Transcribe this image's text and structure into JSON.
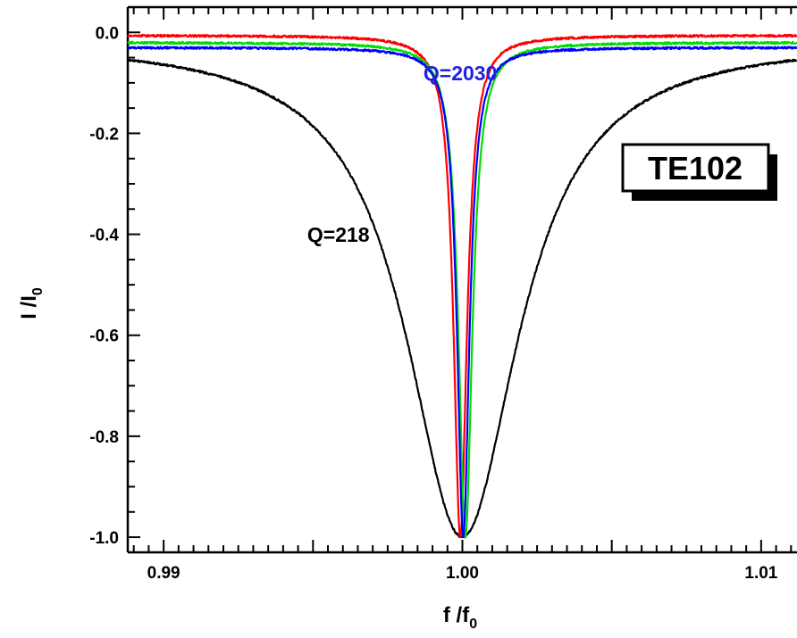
{
  "chart_data": {
    "type": "line",
    "xlabel": {
      "main": "f /f",
      "sub": "0"
    },
    "ylabel": {
      "main": "I /I",
      "sub": "0"
    },
    "xlim": [
      0.9888,
      1.0112
    ],
    "ylim": [
      -1.03,
      0.05
    ],
    "x_ticks": [
      {
        "value": 0.99,
        "label": "0.99"
      },
      {
        "value": 1.0,
        "label": "1.00"
      },
      {
        "value": 1.01,
        "label": "1.01"
      }
    ],
    "y_ticks": [
      {
        "value": 0.0,
        "label": "0.0"
      },
      {
        "value": -0.2,
        "label": "-0.2"
      },
      {
        "value": -0.4,
        "label": "-0.4"
      },
      {
        "value": -0.6,
        "label": "-0.6"
      },
      {
        "value": -0.8,
        "label": "-0.8"
      },
      {
        "value": -1.0,
        "label": "-1.0"
      }
    ],
    "series": [
      {
        "color": "#000000",
        "baseline": -0.015,
        "depth": 0.985,
        "center": 1.0,
        "hwhm": 0.00229
      },
      {
        "color": "#ff0000",
        "baseline": -0.006,
        "depth": 0.994,
        "center": 0.99993,
        "hwhm": 0.00027
      },
      {
        "color": "#00dd00",
        "baseline": -0.02,
        "depth": 0.98,
        "center": 1.0001,
        "hwhm": 0.00028
      },
      {
        "color": "#0000ff",
        "baseline": -0.03,
        "depth": 0.97,
        "center": 1.00003,
        "hwhm": 0.00025
      }
    ],
    "annotations": [
      {
        "text": "Q=2030",
        "color": "#2222dd",
        "x": 0.99993,
        "y": -0.095
      },
      {
        "text": "Q=218",
        "color": "#000000",
        "x": 0.99585,
        "y": -0.415
      }
    ],
    "label_box": {
      "text": "TE102"
    },
    "grid": false,
    "legend": "none"
  }
}
